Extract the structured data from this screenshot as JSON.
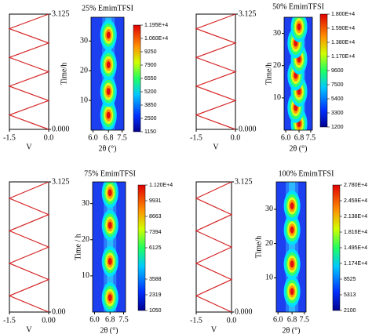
{
  "chart_data": [
    {
      "type": "line",
      "xlabel": "V",
      "x": [
        0,
        -1.5,
        0,
        -1.5,
        0,
        -1.5,
        0,
        -1.5,
        0
      ],
      "y": [
        0,
        0.39,
        0.78,
        1.17,
        1.56,
        1.95,
        2.34,
        2.73,
        3.125
      ],
      "xlim": [
        -1.5,
        0
      ],
      "xticks": [
        {
          "value": -1.5,
          "label": "-1.5"
        },
        {
          "value": 0,
          "label": "0.0"
        }
      ],
      "ylim": [
        0,
        3.125
      ],
      "yticks": [
        {
          "value": 0,
          "label": "0.000"
        },
        3.125
      ],
      "color": "#d62728"
    },
    {
      "type": "contour",
      "title": "25% EmimTFSI",
      "ylabel": "Time/h",
      "xlabel": "2θ (°)",
      "xlim": [
        5.9,
        7.6
      ],
      "xticks": [
        {
          "value": 6.0,
          "label": "6.0"
        },
        {
          "value": 6.8,
          "label": "6.8"
        },
        {
          "value": 7.5,
          "label": "7.5"
        }
      ],
      "ylim": [
        0,
        38
      ],
      "yticks": [
        10,
        20,
        30
      ],
      "peaks": {
        "x": [
          6.8,
          6.8,
          6.8,
          6.8
        ],
        "y": [
          5,
          13,
          22,
          32
        ]
      },
      "zlim": [
        1150,
        11950
      ],
      "zticks": [
        {
          "value": 11950,
          "label": "1.195E+4"
        },
        {
          "value": 10600,
          "label": "1.060E+4"
        },
        9250,
        7900,
        6550,
        5200,
        3850,
        2500,
        1150
      ]
    },
    {
      "type": "line",
      "xlabel": "V",
      "x": [
        0,
        -1.5,
        0,
        -1.5,
        0,
        -1.5,
        0,
        -1.5,
        0
      ],
      "y": [
        0,
        0.39,
        0.78,
        1.17,
        1.56,
        1.95,
        2.34,
        2.73,
        3.125
      ],
      "xlim": [
        -1.5,
        0
      ],
      "xticks": [
        {
          "value": -1.5,
          "label": "-1.5"
        },
        {
          "value": 0,
          "label": "0.0"
        }
      ],
      "ylim": [
        0,
        3.125
      ],
      "yticks": [
        {
          "value": 0,
          "label": "0.000"
        },
        3.125
      ],
      "color": "#d62728"
    },
    {
      "type": "contour",
      "title": "50% EmimTFSI",
      "ylabel": "Time/h",
      "xlabel": "2θ (°)",
      "xlim": [
        5.9,
        7.6
      ],
      "xticks": [
        {
          "value": 6.0,
          "label": "6.0"
        },
        {
          "value": 6.8,
          "label": "6.8"
        },
        {
          "value": 7.5,
          "label": "7.5"
        }
      ],
      "ylim": [
        0,
        35
      ],
      "yticks": [
        10,
        20,
        30
      ],
      "peaks": {
        "x": [
          6.8,
          6.6,
          6.8,
          6.6,
          6.8,
          6.6,
          6.8
        ],
        "y": [
          2,
          7,
          12,
          17,
          22,
          27,
          32
        ]
      },
      "zlim": [
        1200,
        18000
      ],
      "zticks": [
        {
          "value": 18000,
          "label": "1.800E+4"
        },
        {
          "value": 15900,
          "label": "1.590E+4"
        },
        {
          "value": 13800,
          "label": "1.380E+4"
        },
        {
          "value": 11700,
          "label": "1.170E+4"
        },
        9600,
        7500,
        5400,
        3300,
        1200
      ]
    },
    {
      "type": "line",
      "xlabel": "V",
      "x": [
        0,
        -1.5,
        0,
        -1.5,
        0,
        -1.5,
        0,
        -1.5,
        0
      ],
      "y": [
        0,
        0.39,
        0.78,
        1.17,
        1.56,
        1.95,
        2.34,
        2.73,
        3.125
      ],
      "xlim": [
        -1.5,
        0
      ],
      "xticks": [
        {
          "value": -1.5,
          "label": "-1.5"
        },
        {
          "value": 0,
          "label": "0.00"
        }
      ],
      "ylim": [
        0,
        3.125
      ],
      "yticks": [
        {
          "value": 0,
          "label": "0.00"
        },
        3.125
      ],
      "color": "#d62728"
    },
    {
      "type": "contour",
      "title": "75% EmimTFSI",
      "ylabel": "Time / h",
      "xlabel": "2θ (°)",
      "xlim": [
        5.9,
        7.6
      ],
      "xticks": [
        {
          "value": 6.0,
          "label": "6.0"
        },
        {
          "value": 6.8,
          "label": "6.8"
        },
        {
          "value": 7.5,
          "label": "7.5"
        }
      ],
      "ylim": [
        0,
        36
      ],
      "yticks": [
        10,
        20,
        30
      ],
      "peaks": {
        "x": [
          6.8,
          6.8,
          6.8,
          6.8
        ],
        "y": [
          4,
          14,
          24,
          33
        ]
      },
      "zlim": [
        1050,
        11200
      ],
      "zticks": [
        {
          "value": 11200,
          "label": "1.120E+4"
        },
        9931,
        8663,
        7394,
        6125,
        3588,
        2319,
        1050
      ]
    },
    {
      "type": "line",
      "xlabel": "V",
      "x": [
        0,
        -1.5,
        0,
        -1.5,
        0,
        -1.5,
        0,
        -1.5,
        0
      ],
      "y": [
        0,
        0.39,
        0.78,
        1.17,
        1.56,
        1.95,
        2.34,
        2.73,
        3.125
      ],
      "xlim": [
        -1.5,
        0
      ],
      "xticks": [
        {
          "value": -1.5,
          "label": "-1.5"
        },
        {
          "value": 0,
          "label": "0.0"
        }
      ],
      "ylim": [
        0,
        3.125
      ],
      "yticks": [
        {
          "value": 0,
          "label": "0.000"
        },
        3.125
      ],
      "color": "#d62728"
    },
    {
      "type": "contour",
      "title": "100% EmimTFSI",
      "ylabel": "Time/h",
      "xlabel": "2θ (°)",
      "xlim": [
        5.9,
        7.6
      ],
      "xticks": [
        {
          "value": 6.0,
          "label": "6.0"
        },
        {
          "value": 6.8,
          "label": "6.8"
        },
        {
          "value": 7.5,
          "label": "7.5"
        }
      ],
      "ylim": [
        0,
        38
      ],
      "yticks": [
        10,
        20,
        30
      ],
      "peaks": {
        "x": [
          6.8,
          6.8,
          6.8,
          6.8
        ],
        "y": [
          6,
          14,
          24,
          31
        ]
      },
      "zlim": [
        2100,
        27800
      ],
      "zticks": [
        {
          "value": 27800,
          "label": "2.780E+4"
        },
        {
          "value": 24590,
          "label": "2.459E+4"
        },
        {
          "value": 21380,
          "label": "2.138E+4"
        },
        {
          "value": 18160,
          "label": "1.816E+4"
        },
        {
          "value": 14950,
          "label": "1.495E+4"
        },
        {
          "value": 11740,
          "label": "1.174E+4"
        },
        8525,
        5313,
        2100
      ]
    }
  ]
}
